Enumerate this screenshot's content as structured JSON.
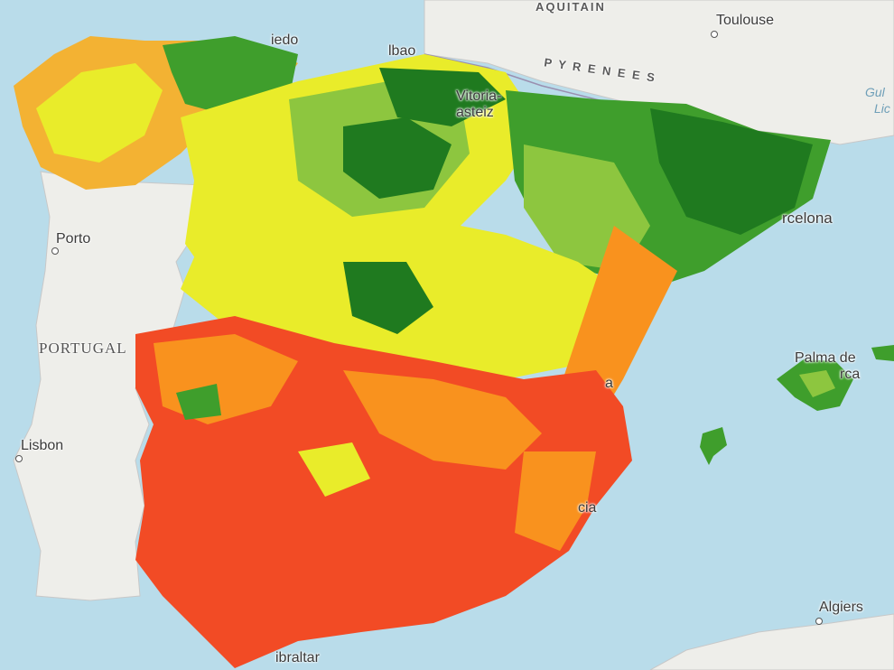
{
  "map": {
    "colors": {
      "sea": "#b9dcea",
      "land": "#eeeeea",
      "red": "#f24b25",
      "orange": "#f9921e",
      "yellow": "#e9ec2a",
      "light_green": "#8dc63f",
      "green": "#3f9e2c",
      "dark_green": "#1f7a1f"
    },
    "labels": {
      "aquitain": "AQUITAIN",
      "pyrenees": "P Y R E N E E S",
      "toulouse": "Toulouse",
      "porto": "Porto",
      "portugal": "PORTUGAL",
      "lisbon": "Lisbon",
      "barcelona": "rcelona",
      "palma": "Palma de",
      "palma2": "rca",
      "algiers": "Algiers",
      "gibraltar": "ibraltar",
      "murcia": "cia",
      "valencia": "a",
      "oviedo": "iedo",
      "bilbao": "lbao",
      "vitoria": "Vitoria-",
      "vitoria2": "asteiz",
      "gulf": "Gul",
      "gulf2": "Lic"
    }
  }
}
